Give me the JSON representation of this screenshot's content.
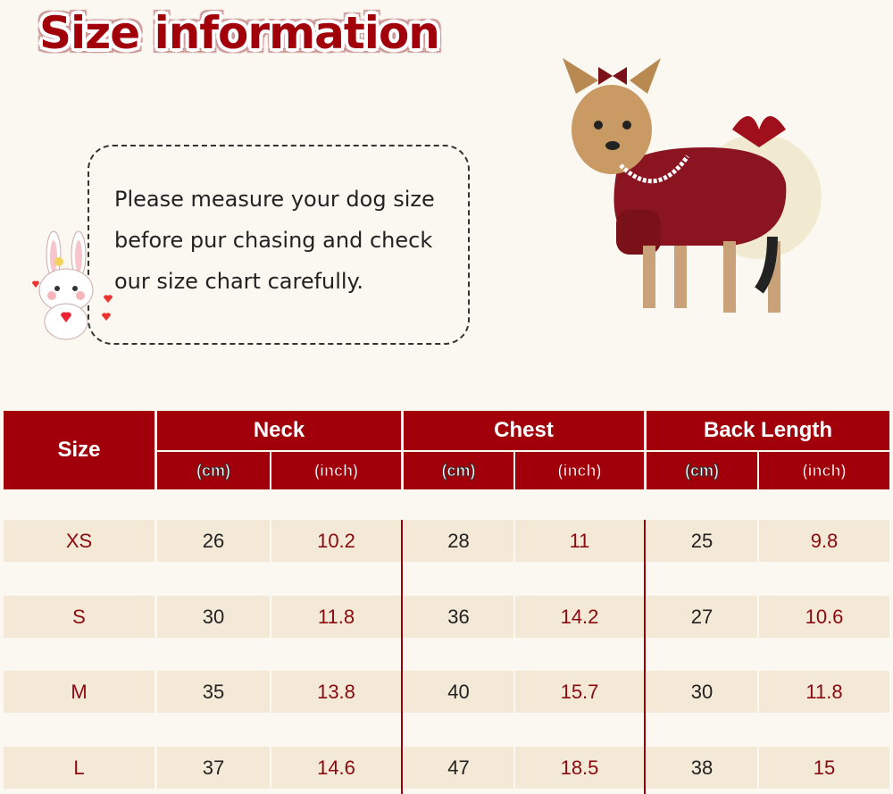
{
  "title": "Size information",
  "note": "Please measure your dog size before pur chasing and check our size chart carefully.",
  "colors": {
    "accent": "#a1000b",
    "background": "#fbf8f1",
    "row": "#f3e9d6"
  },
  "table": {
    "size_header": "Size",
    "groups": [
      "Neck",
      "Chest",
      "Back Length"
    ],
    "units": [
      "(cm)",
      "(inch)"
    ],
    "rows": [
      {
        "size": "XS",
        "values": [
          "26",
          "10.2",
          "28",
          "11",
          "25",
          "9.8"
        ]
      },
      {
        "size": "S",
        "values": [
          "30",
          "11.8",
          "36",
          "14.2",
          "27",
          "10.6"
        ]
      },
      {
        "size": "M",
        "values": [
          "35",
          "13.8",
          "40",
          "15.7",
          "30",
          "11.8"
        ]
      },
      {
        "size": "L",
        "values": [
          "37",
          "14.6",
          "47",
          "18.5",
          "38",
          "15"
        ]
      }
    ]
  }
}
